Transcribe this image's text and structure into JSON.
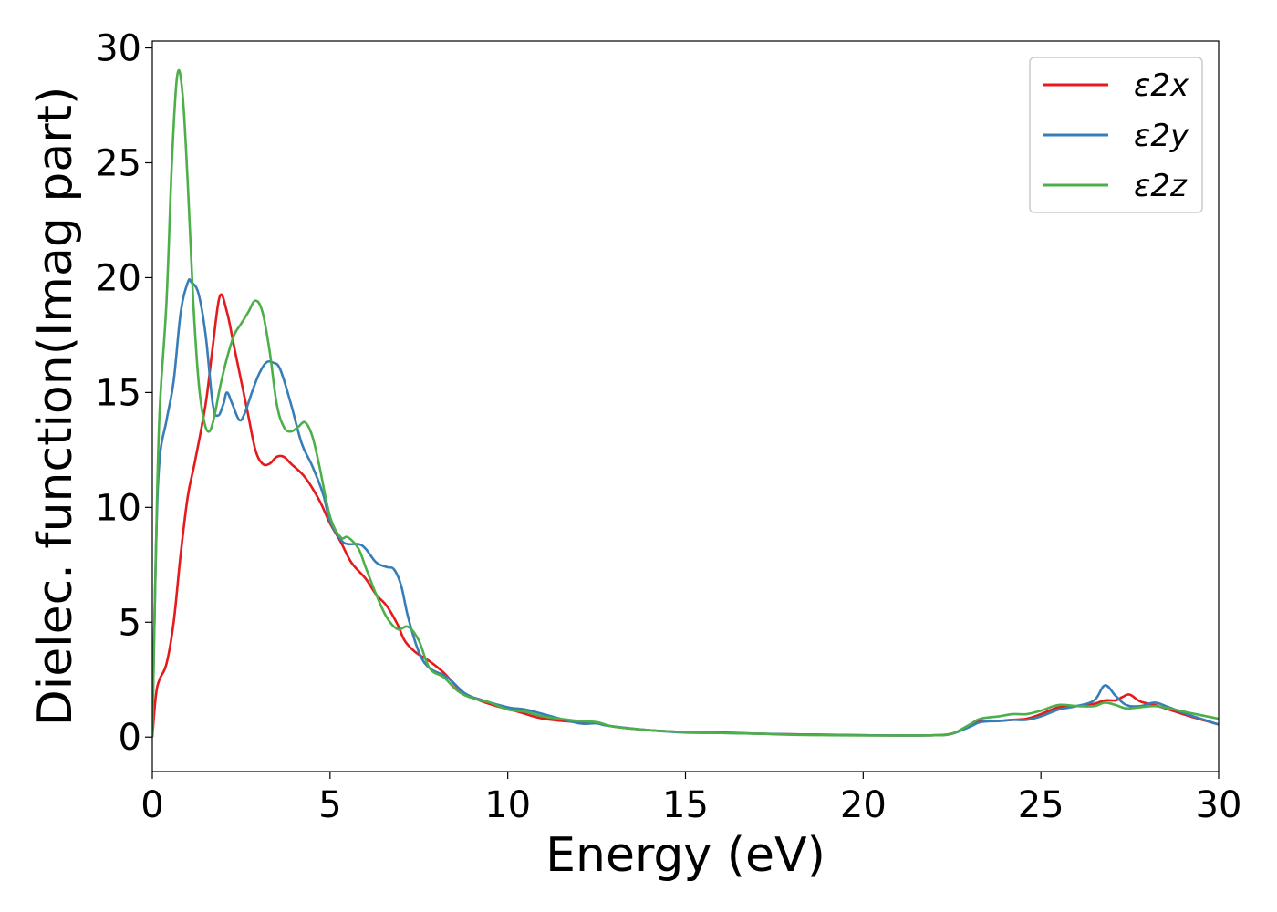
{
  "chart_data": {
    "type": "line",
    "xlabel": "Energy (eV)",
    "ylabel": "Dielec. function(Imag part)",
    "xlim": [
      0,
      30
    ],
    "ylim": [
      -1.5,
      30.3
    ],
    "xticks": [
      0,
      5,
      10,
      15,
      20,
      25,
      30
    ],
    "yticks": [
      0,
      5,
      10,
      15,
      20,
      25,
      30
    ],
    "xtick_labels": [
      "0",
      "5",
      "10",
      "15",
      "20",
      "25",
      "30"
    ],
    "ytick_labels": [
      "0",
      "5",
      "10",
      "15",
      "20",
      "25",
      "30"
    ],
    "grid": false,
    "legend_position": "top-right",
    "series": [
      {
        "name": "ε2x",
        "color": "#e41a1c",
        "points": [
          [
            0,
            0
          ],
          [
            0.1,
            1.8
          ],
          [
            0.2,
            2.5
          ],
          [
            0.4,
            3.2
          ],
          [
            0.6,
            5
          ],
          [
            0.8,
            8
          ],
          [
            1.0,
            10.5
          ],
          [
            1.2,
            12
          ],
          [
            1.5,
            14.5
          ],
          [
            1.7,
            17
          ],
          [
            1.9,
            19.2
          ],
          [
            2.1,
            18.5
          ],
          [
            2.3,
            17
          ],
          [
            2.5,
            15.5
          ],
          [
            2.7,
            14
          ],
          [
            2.9,
            12.5
          ],
          [
            3.1,
            11.9
          ],
          [
            3.3,
            11.9
          ],
          [
            3.5,
            12.2
          ],
          [
            3.7,
            12.2
          ],
          [
            3.9,
            11.9
          ],
          [
            4.3,
            11.3
          ],
          [
            4.7,
            10.3
          ],
          [
            5.0,
            9.3
          ],
          [
            5.3,
            8.5
          ],
          [
            5.6,
            7.6
          ],
          [
            6.0,
            6.9
          ],
          [
            6.3,
            6.2
          ],
          [
            6.6,
            5.7
          ],
          [
            6.9,
            4.9
          ],
          [
            7.1,
            4.2
          ],
          [
            7.4,
            3.7
          ],
          [
            7.8,
            3.3
          ],
          [
            8.2,
            2.8
          ],
          [
            8.7,
            2.0
          ],
          [
            9.2,
            1.6
          ],
          [
            9.8,
            1.3
          ],
          [
            10.3,
            1.1
          ],
          [
            11.0,
            0.8
          ],
          [
            12.0,
            0.65
          ],
          [
            12.5,
            0.6
          ],
          [
            13.0,
            0.45
          ],
          [
            14.0,
            0.3
          ],
          [
            15.0,
            0.22
          ],
          [
            16.0,
            0.2
          ],
          [
            17.0,
            0.15
          ],
          [
            18.0,
            0.12
          ],
          [
            19.0,
            0.1
          ],
          [
            20.0,
            0.08
          ],
          [
            21.0,
            0.07
          ],
          [
            22.0,
            0.08
          ],
          [
            22.5,
            0.15
          ],
          [
            23.0,
            0.5
          ],
          [
            23.3,
            0.7
          ],
          [
            23.8,
            0.7
          ],
          [
            24.2,
            0.75
          ],
          [
            24.6,
            0.8
          ],
          [
            25.0,
            1.0
          ],
          [
            25.5,
            1.3
          ],
          [
            26.0,
            1.35
          ],
          [
            26.5,
            1.45
          ],
          [
            26.8,
            1.6
          ],
          [
            27.1,
            1.6
          ],
          [
            27.3,
            1.75
          ],
          [
            27.5,
            1.85
          ],
          [
            27.8,
            1.55
          ],
          [
            28.2,
            1.4
          ],
          [
            28.6,
            1.2
          ],
          [
            29.2,
            0.9
          ],
          [
            30.0,
            0.55
          ]
        ]
      },
      {
        "name": "ε2y",
        "color": "#377eb8",
        "points": [
          [
            0,
            0
          ],
          [
            0.1,
            8
          ],
          [
            0.2,
            12
          ],
          [
            0.4,
            13.8
          ],
          [
            0.6,
            15.5
          ],
          [
            0.8,
            18.5
          ],
          [
            1.0,
            19.8
          ],
          [
            1.1,
            19.8
          ],
          [
            1.3,
            19.3
          ],
          [
            1.5,
            17.5
          ],
          [
            1.7,
            14.5
          ],
          [
            1.85,
            14.0
          ],
          [
            2.0,
            14.5
          ],
          [
            2.1,
            15.0
          ],
          [
            2.25,
            14.5
          ],
          [
            2.45,
            13.8
          ],
          [
            2.6,
            14.1
          ],
          [
            2.8,
            15.0
          ],
          [
            3.0,
            15.8
          ],
          [
            3.2,
            16.3
          ],
          [
            3.4,
            16.3
          ],
          [
            3.6,
            16.0
          ],
          [
            3.9,
            14.5
          ],
          [
            4.2,
            12.8
          ],
          [
            4.5,
            11.8
          ],
          [
            4.8,
            10.6
          ],
          [
            5.0,
            9.4
          ],
          [
            5.3,
            8.6
          ],
          [
            5.5,
            8.4
          ],
          [
            5.8,
            8.4
          ],
          [
            6.0,
            8.2
          ],
          [
            6.3,
            7.6
          ],
          [
            6.6,
            7.4
          ],
          [
            6.8,
            7.3
          ],
          [
            7.0,
            6.6
          ],
          [
            7.2,
            5.2
          ],
          [
            7.5,
            3.7
          ],
          [
            7.8,
            3.0
          ],
          [
            8.3,
            2.6
          ],
          [
            8.8,
            1.9
          ],
          [
            9.3,
            1.6
          ],
          [
            10.0,
            1.3
          ],
          [
            10.5,
            1.2
          ],
          [
            11.0,
            1.0
          ],
          [
            12.0,
            0.6
          ],
          [
            12.5,
            0.6
          ],
          [
            12.8,
            0.5
          ],
          [
            14.0,
            0.3
          ],
          [
            15.0,
            0.2
          ],
          [
            16.0,
            0.18
          ],
          [
            17.0,
            0.15
          ],
          [
            18.0,
            0.12
          ],
          [
            19.0,
            0.1
          ],
          [
            20.0,
            0.08
          ],
          [
            21.0,
            0.07
          ],
          [
            22.0,
            0.08
          ],
          [
            22.5,
            0.15
          ],
          [
            23.0,
            0.45
          ],
          [
            23.3,
            0.65
          ],
          [
            23.8,
            0.7
          ],
          [
            24.2,
            0.75
          ],
          [
            24.6,
            0.75
          ],
          [
            25.0,
            0.9
          ],
          [
            25.5,
            1.2
          ],
          [
            26.0,
            1.35
          ],
          [
            26.5,
            1.6
          ],
          [
            26.8,
            2.25
          ],
          [
            27.1,
            1.8
          ],
          [
            27.4,
            1.4
          ],
          [
            27.8,
            1.35
          ],
          [
            28.2,
            1.5
          ],
          [
            28.6,
            1.3
          ],
          [
            29.2,
            0.95
          ],
          [
            30.0,
            0.55
          ]
        ]
      },
      {
        "name": "ε2z",
        "color": "#4daf4a",
        "points": [
          [
            0,
            0
          ],
          [
            0.1,
            8
          ],
          [
            0.2,
            14
          ],
          [
            0.4,
            19
          ],
          [
            0.55,
            25
          ],
          [
            0.7,
            28.8
          ],
          [
            0.85,
            28
          ],
          [
            1.0,
            24
          ],
          [
            1.15,
            19
          ],
          [
            1.3,
            15.5
          ],
          [
            1.45,
            13.8
          ],
          [
            1.6,
            13.3
          ],
          [
            1.75,
            14.0
          ],
          [
            1.9,
            15.2
          ],
          [
            2.1,
            16.5
          ],
          [
            2.3,
            17.5
          ],
          [
            2.5,
            18.0
          ],
          [
            2.7,
            18.5
          ],
          [
            2.9,
            19.0
          ],
          [
            3.1,
            18.5
          ],
          [
            3.3,
            16.8
          ],
          [
            3.5,
            14.5
          ],
          [
            3.7,
            13.5
          ],
          [
            3.9,
            13.3
          ],
          [
            4.1,
            13.5
          ],
          [
            4.3,
            13.7
          ],
          [
            4.5,
            13.1
          ],
          [
            4.7,
            11.8
          ],
          [
            5.0,
            9.6
          ],
          [
            5.3,
            8.7
          ],
          [
            5.5,
            8.7
          ],
          [
            5.8,
            8.2
          ],
          [
            6.0,
            7.4
          ],
          [
            6.3,
            6.2
          ],
          [
            6.6,
            5.2
          ],
          [
            6.9,
            4.7
          ],
          [
            7.2,
            4.8
          ],
          [
            7.5,
            4.2
          ],
          [
            7.8,
            3.0
          ],
          [
            8.2,
            2.6
          ],
          [
            8.6,
            2.0
          ],
          [
            9.0,
            1.7
          ],
          [
            9.5,
            1.5
          ],
          [
            10.0,
            1.2
          ],
          [
            10.5,
            1.1
          ],
          [
            11.0,
            0.9
          ],
          [
            12.0,
            0.7
          ],
          [
            12.5,
            0.65
          ],
          [
            13.0,
            0.45
          ],
          [
            14.0,
            0.3
          ],
          [
            15.0,
            0.22
          ],
          [
            16.0,
            0.18
          ],
          [
            17.0,
            0.15
          ],
          [
            18.0,
            0.1
          ],
          [
            19.0,
            0.08
          ],
          [
            20.0,
            0.07
          ],
          [
            21.0,
            0.07
          ],
          [
            22.0,
            0.08
          ],
          [
            22.5,
            0.15
          ],
          [
            23.0,
            0.55
          ],
          [
            23.3,
            0.8
          ],
          [
            23.8,
            0.9
          ],
          [
            24.2,
            1.0
          ],
          [
            24.6,
            1.0
          ],
          [
            25.0,
            1.15
          ],
          [
            25.5,
            1.4
          ],
          [
            26.0,
            1.35
          ],
          [
            26.5,
            1.35
          ],
          [
            26.8,
            1.5
          ],
          [
            27.1,
            1.4
          ],
          [
            27.4,
            1.25
          ],
          [
            27.8,
            1.3
          ],
          [
            28.2,
            1.35
          ],
          [
            28.6,
            1.25
          ],
          [
            29.2,
            1.05
          ],
          [
            30.0,
            0.8
          ]
        ]
      }
    ]
  }
}
